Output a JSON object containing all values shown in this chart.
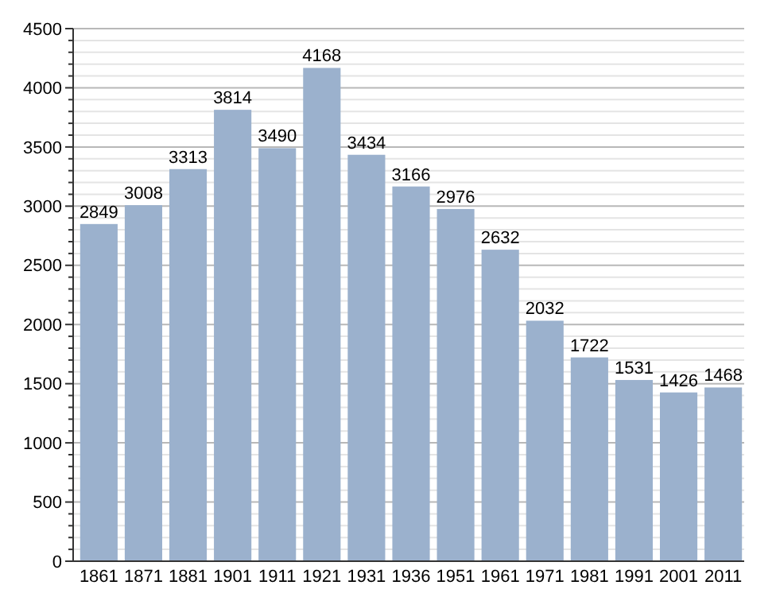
{
  "chart_data": {
    "type": "bar",
    "categories": [
      "1861",
      "1871",
      "1881",
      "1901",
      "1911",
      "1921",
      "1931",
      "1936",
      "1951",
      "1961",
      "1971",
      "1981",
      "1991",
      "2001",
      "2011"
    ],
    "values": [
      2849,
      3008,
      3313,
      3814,
      3490,
      4168,
      3434,
      3166,
      2976,
      2632,
      2032,
      1722,
      1531,
      1426,
      1468
    ],
    "color": "#9bb1cd",
    "data_labels": true,
    "grid": "y",
    "ylim": [
      0,
      4500
    ],
    "yticks": [
      0,
      {
        "value": 100,
        "label": null
      },
      {
        "value": 200,
        "label": null
      },
      {
        "value": 300,
        "label": null
      },
      {
        "value": 400,
        "label": null
      },
      500,
      {
        "value": 600,
        "label": null
      },
      {
        "value": 700,
        "label": null
      },
      {
        "value": 800,
        "label": null
      },
      {
        "value": 900,
        "label": null
      },
      1000,
      {
        "value": 1100,
        "label": null
      },
      {
        "value": 1200,
        "label": null
      },
      {
        "value": 1300,
        "label": null
      },
      {
        "value": 1400,
        "label": null
      },
      1500,
      {
        "value": 1600,
        "label": null
      },
      {
        "value": 1700,
        "label": null
      },
      {
        "value": 1800,
        "label": null
      },
      {
        "value": 1900,
        "label": null
      },
      2000,
      {
        "value": 2100,
        "label": null
      },
      {
        "value": 2200,
        "label": null
      },
      {
        "value": 2300,
        "label": null
      },
      {
        "value": 2400,
        "label": null
      },
      2500,
      {
        "value": 2600,
        "label": null
      },
      {
        "value": 2700,
        "label": null
      },
      {
        "value": 2800,
        "label": null
      },
      {
        "value": 2900,
        "label": null
      },
      3000,
      {
        "value": 3100,
        "label": null
      },
      {
        "value": 3200,
        "label": null
      },
      {
        "value": 3300,
        "label": null
      },
      {
        "value": 3400,
        "label": null
      },
      3500,
      {
        "value": 3600,
        "label": null
      },
      {
        "value": 3700,
        "label": null
      },
      {
        "value": 3800,
        "label": null
      },
      {
        "value": 3900,
        "label": null
      },
      4000,
      {
        "value": 4100,
        "label": null
      },
      {
        "value": 4200,
        "label": null
      },
      {
        "value": 4300,
        "label": null
      },
      {
        "value": 4400,
        "label": null
      },
      4500
    ]
  }
}
